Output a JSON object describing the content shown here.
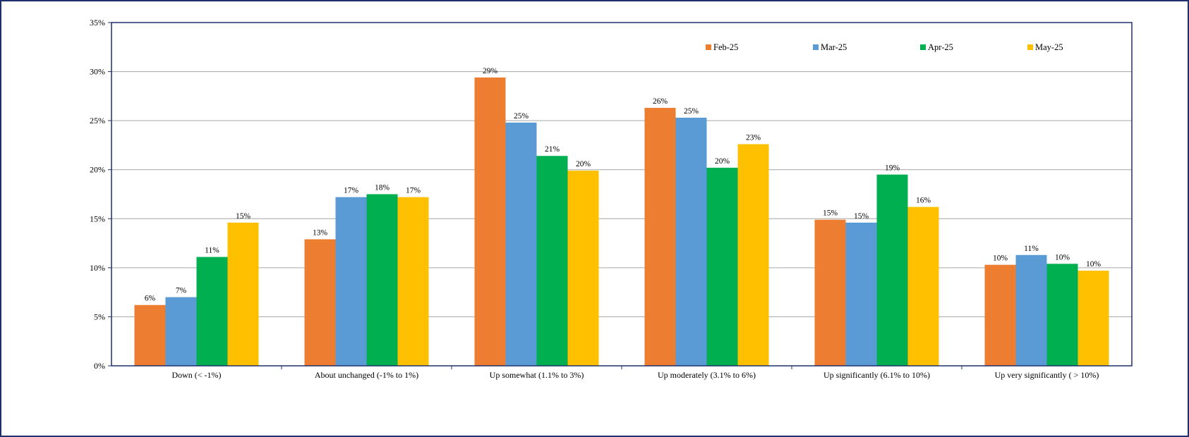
{
  "chart_data": {
    "type": "bar",
    "title": "",
    "xlabel": "",
    "ylabel": "",
    "ylim": [
      0,
      35
    ],
    "y_ticks": [
      0,
      5,
      10,
      15,
      20,
      25,
      30,
      35
    ],
    "y_tick_labels": [
      "0%",
      "5%",
      "10%",
      "15%",
      "20%",
      "25%",
      "30%",
      "35%"
    ],
    "grid": true,
    "legend_position": "top-right",
    "categories": [
      "Down (< -1%)",
      "About unchanged (-1% to 1%)",
      "Up somewhat (1.1% to 3%)",
      "Up moderately (3.1% to 6%)",
      "Up significantly (6.1% to 10%)",
      "Up very significantly ( > 10%)"
    ],
    "series": [
      {
        "name": "Feb-25",
        "color": "#ed7d31",
        "values": [
          6.2,
          12.9,
          29.4,
          26.3,
          14.9,
          10.3
        ],
        "labels": [
          "6%",
          "13%",
          "29%",
          "26%",
          "15%",
          "10%"
        ]
      },
      {
        "name": "Mar-25",
        "color": "#5b9bd5",
        "values": [
          7.0,
          17.2,
          24.8,
          25.3,
          14.6,
          11.3
        ],
        "labels": [
          "7%",
          "17%",
          "25%",
          "25%",
          "15%",
          "11%"
        ]
      },
      {
        "name": "Apr-25",
        "color": "#00b050",
        "values": [
          11.1,
          17.5,
          21.4,
          20.2,
          19.5,
          10.4
        ],
        "labels": [
          "11%",
          "18%",
          "21%",
          "20%",
          "19%",
          "10%"
        ]
      },
      {
        "name": "May-25",
        "color": "#ffc000",
        "values": [
          14.6,
          17.2,
          19.9,
          22.6,
          16.2,
          9.7
        ],
        "labels": [
          "15%",
          "17%",
          "20%",
          "23%",
          "16%",
          "10%"
        ]
      }
    ]
  }
}
